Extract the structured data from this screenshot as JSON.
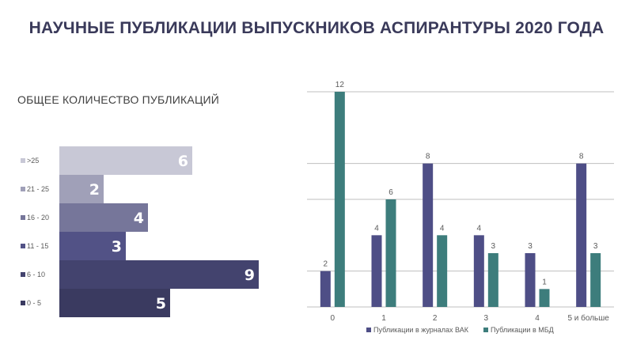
{
  "page": {
    "title": "НАУЧНЫЕ ПУБЛИКАЦИИ ВЫПУСКНИКОВ АСПИРАНТУРЫ 2020 ГОДА",
    "subtitle": "ОБЩЕЕ КОЛИЧЕСТВО ПУБЛИКАЦИЙ"
  },
  "chart_data": [
    {
      "type": "bar",
      "orientation": "horizontal",
      "title": "",
      "categories": [
        ">25",
        "21 - 25",
        "16 - 20",
        "11 - 15",
        "6 - 10",
        "0 - 5"
      ],
      "values": [
        6,
        2,
        4,
        3,
        9,
        5
      ],
      "colors": [
        "#c8c8d6",
        "#a0a0b8",
        "#76769a",
        "#525286",
        "#43436e",
        "#3a3a60"
      ],
      "xlim": [
        0,
        9.5
      ],
      "grid": false,
      "legend": "left"
    },
    {
      "type": "bar",
      "title": "",
      "categories": [
        "0",
        "1",
        "2",
        "3",
        "4",
        "5 и больше"
      ],
      "series": [
        {
          "name": "Публикации в журналах ВАК",
          "values": [
            2,
            4,
            8,
            4,
            3,
            8
          ],
          "color": "#4e4e86"
        },
        {
          "name": "Публикации в МБД",
          "values": [
            12,
            6,
            4,
            3,
            1,
            3
          ],
          "color": "#3d7d7c"
        }
      ],
      "ylim": [
        0,
        12
      ],
      "grid": true,
      "legend": "bottom"
    }
  ]
}
